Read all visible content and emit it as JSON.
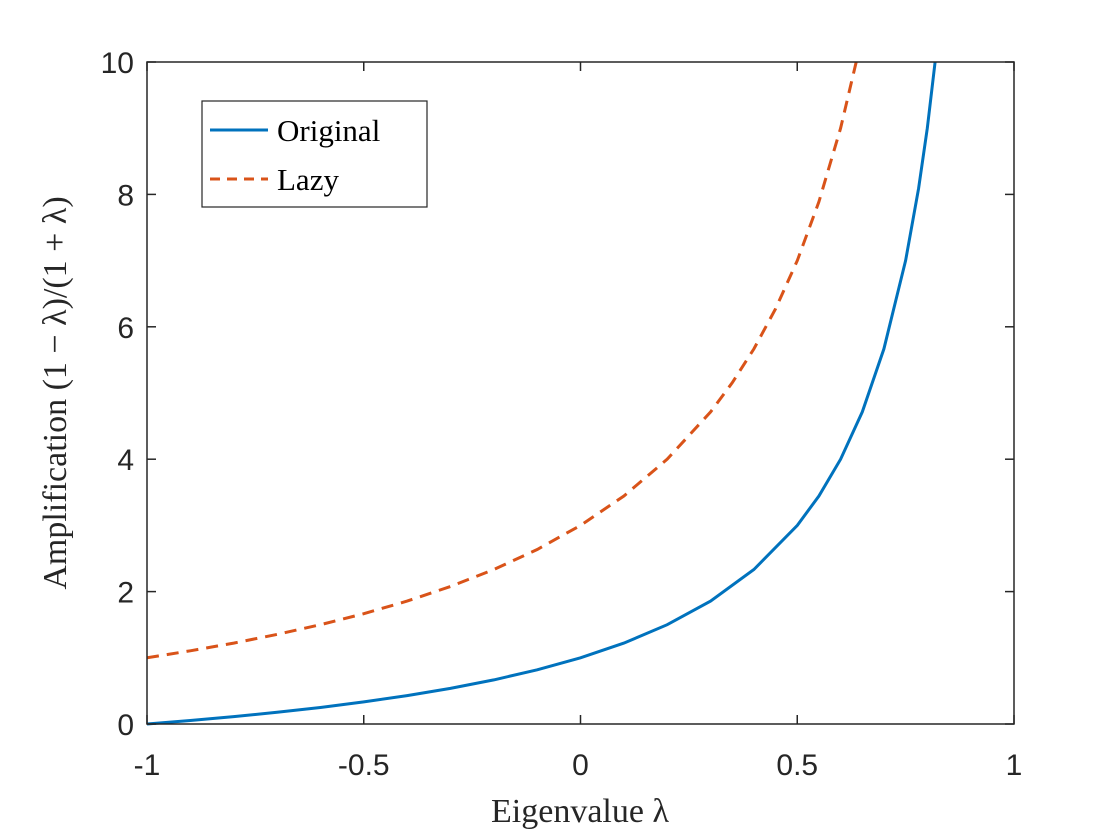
{
  "chart_data": {
    "type": "line",
    "title": "",
    "xlabel": "Eigenvalue λ",
    "ylabel": "Amplification (1 − λ)/(1 + λ)",
    "xlim": [
      -1,
      1
    ],
    "ylim": [
      0,
      10
    ],
    "xticks": [
      "-1",
      "-0.5",
      "0",
      "0.5",
      "1"
    ],
    "yticks": [
      "0",
      "2",
      "4",
      "6",
      "8",
      "10"
    ],
    "grid": false,
    "legend_position": "top-left",
    "series": [
      {
        "name": "Original",
        "color": "#0072BD",
        "style": "solid",
        "x": [
          -1,
          -0.9,
          -0.8,
          -0.7,
          -0.6,
          -0.5,
          -0.4,
          -0.3,
          -0.2,
          -0.1,
          0,
          0.1,
          0.2,
          0.3,
          0.4,
          0.5,
          0.55,
          0.6,
          0.65,
          0.7,
          0.75,
          0.78,
          0.8,
          0.818
        ],
        "y": [
          0,
          0.0526,
          0.1111,
          0.1765,
          0.25,
          0.3333,
          0.4286,
          0.5385,
          0.6667,
          0.8182,
          1,
          1.2222,
          1.5,
          1.8571,
          2.3333,
          3,
          3.4444,
          4,
          4.7143,
          5.6667,
          7,
          8.0909,
          9,
          10
        ]
      },
      {
        "name": "Lazy",
        "color": "#D95319",
        "style": "dashed",
        "x": [
          -1,
          -0.9,
          -0.8,
          -0.7,
          -0.6,
          -0.5,
          -0.4,
          -0.3,
          -0.2,
          -0.1,
          0,
          0.1,
          0.2,
          0.3,
          0.35,
          0.4,
          0.45,
          0.5,
          0.55,
          0.6,
          0.636
        ],
        "y": [
          1,
          1.1053,
          1.2222,
          1.3529,
          1.5,
          1.6667,
          1.8571,
          2.0769,
          2.3333,
          2.6364,
          3,
          3.4444,
          4,
          4.7143,
          5.1538,
          5.6667,
          6.2727,
          7,
          7.8889,
          9,
          10
        ]
      }
    ]
  }
}
